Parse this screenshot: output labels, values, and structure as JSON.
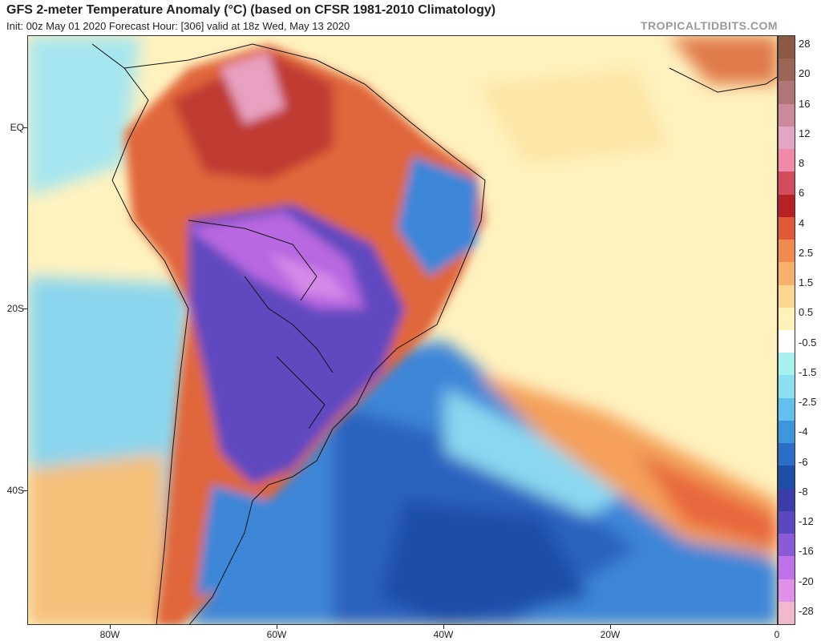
{
  "header": {
    "title": "GFS 2-meter Temperature Anomaly (°C) (based on CFSR 1981-2010 Climatology)",
    "subtitle": "Init: 00z May 01 2020   Forecast Hour: [306]   valid at 18z Wed, May 13 2020",
    "brand": "TROPICALTIDBITS.COM"
  },
  "axes": {
    "lat_labels": [
      "EQ",
      "20S",
      "40S"
    ],
    "lon_labels": [
      "80W",
      "60W",
      "40W",
      "20W",
      "0"
    ]
  },
  "colorbar": {
    "labels": [
      "28",
      "20",
      "16",
      "12",
      "8",
      "6",
      "4",
      "2.5",
      "1.5",
      "0.5",
      "-0.5",
      "-1.5",
      "-2.5",
      "-4",
      "-6",
      "-8",
      "-12",
      "-16",
      "-20",
      "-28"
    ],
    "colors": [
      "#8a5a44",
      "#9b6655",
      "#b07676",
      "#cc8a9a",
      "#e2a6c2",
      "#f08aa8",
      "#d24c5c",
      "#b82028",
      "#e05a3a",
      "#f08a50",
      "#f6b26a",
      "#fbd690",
      "#fff2b8",
      "#ffffff",
      "#a8f0f0",
      "#8ae0f0",
      "#62c0ee",
      "#3c96de",
      "#2a6ec8",
      "#1d4ea8",
      "#3a3ca8",
      "#5a48c0",
      "#8a5ad8",
      "#c070e8",
      "#e090e8",
      "#f0b8cc"
    ]
  }
}
